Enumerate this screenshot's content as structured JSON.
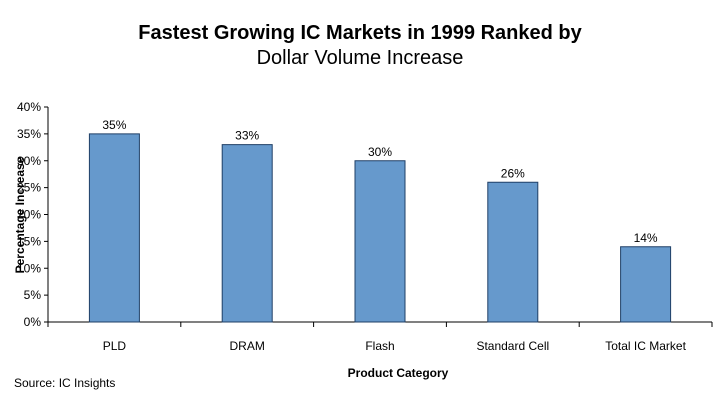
{
  "chart_data": {
    "type": "bar",
    "title": "Fastest Growing IC Markets in 1999 Ranked by",
    "subtitle": "Dollar Volume Increase",
    "xlabel": "Product Category",
    "ylabel": "Percentage Increase",
    "categories": [
      "PLD",
      "DRAM",
      "Flash",
      "Standard Cell",
      "Total IC Market"
    ],
    "values": [
      35,
      33,
      30,
      26,
      14
    ],
    "data_labels": [
      "35%",
      "33%",
      "30%",
      "26%",
      "14%"
    ],
    "ylim": [
      0,
      40
    ],
    "yticks": [
      0,
      5,
      10,
      15,
      20,
      25,
      30,
      35,
      40
    ],
    "ytick_labels": [
      "0%",
      "5%",
      "10%",
      "15%",
      "20%",
      "25%",
      "30%",
      "35%",
      "40%"
    ],
    "grid": false,
    "legend": "none",
    "bar_color": "#6699cc",
    "bar_edge_color": "#1f3f66"
  },
  "source": "Source: IC Insights"
}
